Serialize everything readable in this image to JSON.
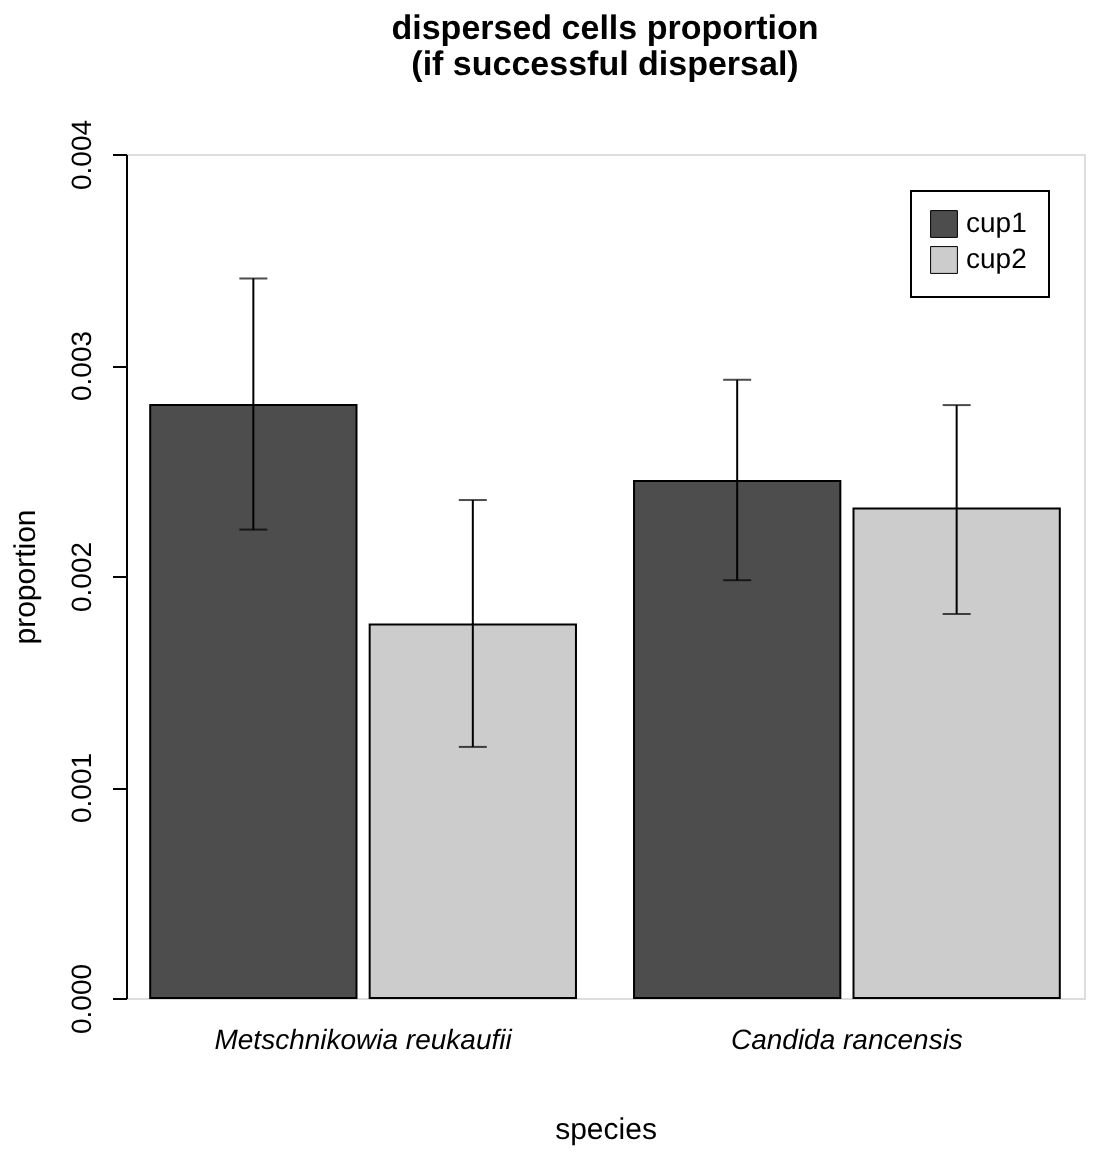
{
  "chart_data": {
    "type": "bar",
    "title": "dispersed cells proportion\n(if successful dispersal)",
    "xlabel": "species",
    "ylabel": "proportion",
    "categories": [
      "Metschnikowia reukaufii",
      "Candida rancensis"
    ],
    "series": [
      {
        "name": "cup1",
        "color": "#4d4d4d",
        "values": [
          0.00281,
          0.00245
        ],
        "errors": [
          [
            0.00222,
            0.00341
          ],
          [
            0.00198,
            0.00293
          ]
        ]
      },
      {
        "name": "cup2",
        "color": "#cccccc",
        "values": [
          0.00177,
          0.00232
        ],
        "errors": [
          [
            0.00119,
            0.00236
          ],
          [
            0.00182,
            0.00281
          ]
        ]
      }
    ],
    "ylim": [
      0,
      0.004
    ],
    "yticks": [
      {
        "value": 0,
        "label": "0.000"
      },
      {
        "value": 0.001,
        "label": "0.001"
      },
      {
        "value": 0.002,
        "label": "0.002"
      },
      {
        "value": 0.003,
        "label": "0.003"
      },
      {
        "value": 0.004,
        "label": "0.004"
      }
    ],
    "legend": "top right",
    "grid": false
  }
}
